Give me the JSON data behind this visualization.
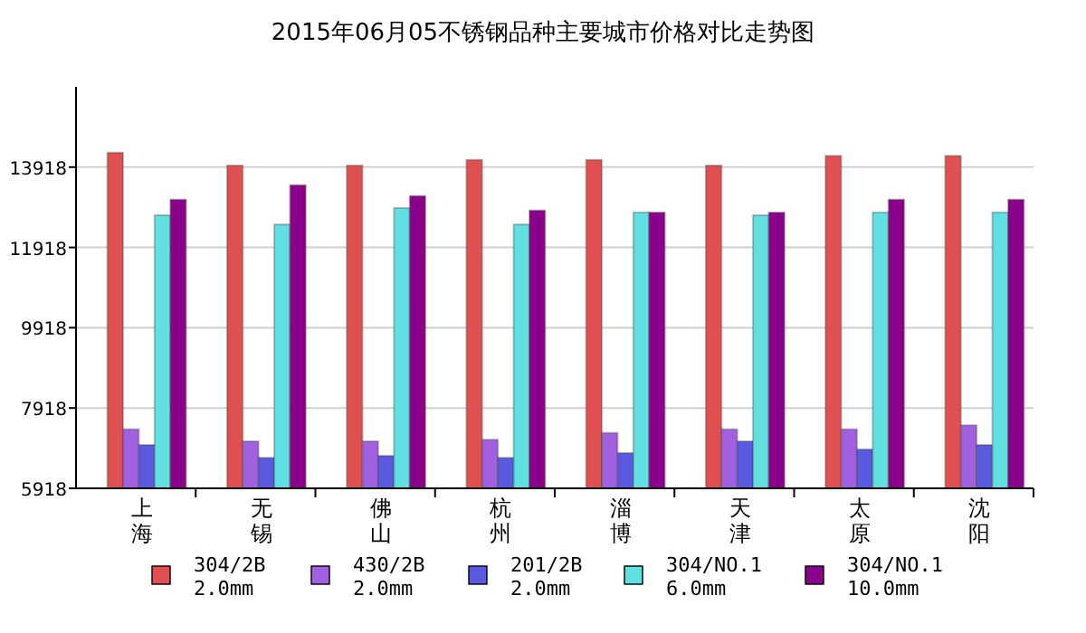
{
  "chart_data": {
    "type": "bar",
    "title": "2015年06月05不锈钢品种主要城市价格对比走势图",
    "categories": [
      "上海",
      "无锡",
      "佛山",
      "杭州",
      "淄博",
      "天津",
      "太原",
      "沈阳"
    ],
    "series": [
      {
        "name": "304/2B 2.0mm",
        "color": "#e05050",
        "values": [
          14280,
          13960,
          13960,
          14100,
          14100,
          13960,
          14200,
          14200
        ]
      },
      {
        "name": "430/2B 2.0mm",
        "color": "#a060e0",
        "values": [
          7390,
          7090,
          7090,
          7130,
          7300,
          7390,
          7390,
          7490
        ]
      },
      {
        "name": "201/2B 2.0mm",
        "color": "#5a5ae0",
        "values": [
          7000,
          6680,
          6730,
          6680,
          6800,
          7090,
          6890,
          7000
        ]
      },
      {
        "name": "304/NO.1 6.0mm",
        "color": "#60e0e0",
        "values": [
          12720,
          12490,
          12900,
          12490,
          12790,
          12720,
          12790,
          12790
        ]
      },
      {
        "name": "304/NO.1 10.0mm",
        "color": "#8b008b",
        "values": [
          13110,
          13470,
          13200,
          12840,
          12790,
          12790,
          13110,
          13110
        ]
      }
    ],
    "ylim": [
      5918,
      15918
    ],
    "yticks": [
      5918,
      7918,
      9918,
      11918,
      13918
    ],
    "grid": "y",
    "legend": "bottom"
  }
}
